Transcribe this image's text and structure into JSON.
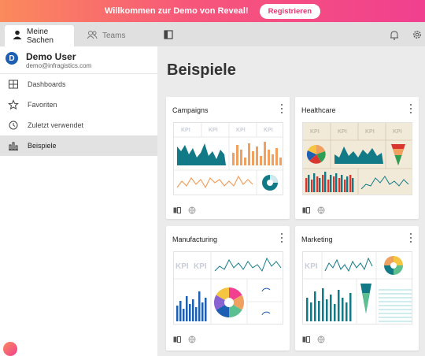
{
  "banner": {
    "text": "Willkommen zur Demo von Reveal!",
    "button": "Registrieren"
  },
  "tabs": [
    {
      "label": "Meine Sachen",
      "icon": "person-icon",
      "active": true
    },
    {
      "label": "Teams",
      "icon": "people-icon",
      "active": false
    }
  ],
  "user": {
    "initial": "D",
    "name": "Demo User",
    "email": "demo@infragistics.com"
  },
  "nav": [
    {
      "label": "Dashboards",
      "icon": "dashboard-icon"
    },
    {
      "label": "Favoriten",
      "icon": "star-icon"
    },
    {
      "label": "Zuletzt verwendet",
      "icon": "clock-icon"
    },
    {
      "label": "Beispiele",
      "icon": "chart-icon",
      "selected": true
    }
  ],
  "page": {
    "title": "Beispiele"
  },
  "cards": [
    {
      "title": "Campaigns",
      "kpi": "KPI"
    },
    {
      "title": "Healthcare",
      "kpi": "KPI"
    },
    {
      "title": "Manufacturing",
      "kpi": "KPI"
    },
    {
      "title": "Marketing",
      "kpi": "KPI"
    }
  ],
  "colors": {
    "teal": "#127a86",
    "orange": "#f0a05f",
    "pink": "#f0408f",
    "healthcare_bg": "#f2ead9",
    "accent_blue": "#1c5fb3"
  }
}
